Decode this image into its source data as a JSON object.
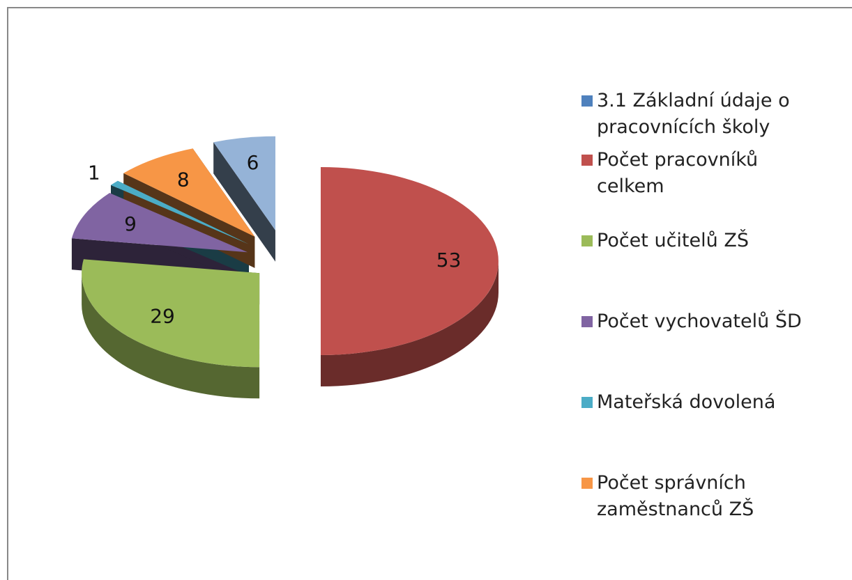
{
  "chart_data": {
    "type": "pie",
    "categories": [
      "3.1 Základní údaje o pracovnících školy",
      "Počet pracovníků celkem",
      "Počet učitelů ZŠ",
      "Počet vychovatelů ŠD",
      "Mateřská dovolená",
      "Počet správních zaměstnanců ZŠ",
      null
    ],
    "values": [
      null,
      53,
      29,
      9,
      1,
      8,
      6
    ],
    "colors": [
      "#4f81bd",
      "#c0504d",
      "#9bbb59",
      "#8064a2",
      "#4bacc6",
      "#f79646",
      "#95b3d7"
    ],
    "legend": "right",
    "three_d": true
  }
}
